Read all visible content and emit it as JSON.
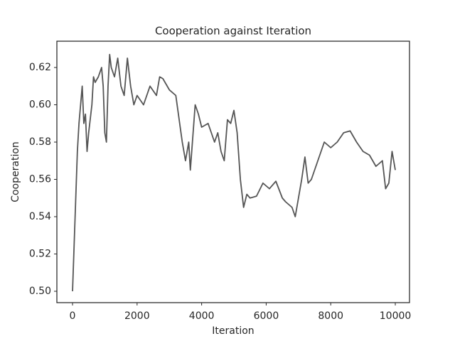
{
  "chart_data": {
    "type": "line",
    "title": "Cooperation against Iteration",
    "x_label": "Iteration",
    "y_label": "Cooperation",
    "x": [
      0,
      100,
      150,
      200,
      250,
      300,
      350,
      400,
      450,
      500,
      600,
      650,
      700,
      800,
      900,
      950,
      1000,
      1050,
      1100,
      1150,
      1200,
      1300,
      1400,
      1500,
      1600,
      1700,
      1800,
      1900,
      2000,
      2200,
      2400,
      2600,
      2700,
      2800,
      3000,
      3200,
      3400,
      3500,
      3600,
      3650,
      3800,
      3900,
      4000,
      4200,
      4400,
      4500,
      4600,
      4700,
      4800,
      4900,
      5000,
      5100,
      5200,
      5300,
      5400,
      5500,
      5700,
      5900,
      6100,
      6300,
      6500,
      6600,
      6800,
      6900,
      7000,
      7100,
      7200,
      7300,
      7400,
      7600,
      7800,
      8000,
      8200,
      8400,
      8600,
      8800,
      9000,
      9200,
      9400,
      9600,
      9700,
      9800,
      9900,
      10000
    ],
    "series": [
      {
        "name": "Cooperation",
        "color": "#555555",
        "values": [
          0.5,
          0.55,
          0.575,
          0.59,
          0.6,
          0.61,
          0.59,
          0.595,
          0.575,
          0.585,
          0.6,
          0.615,
          0.612,
          0.615,
          0.62,
          0.61,
          0.585,
          0.58,
          0.61,
          0.627,
          0.62,
          0.615,
          0.625,
          0.61,
          0.605,
          0.625,
          0.61,
          0.6,
          0.605,
          0.6,
          0.61,
          0.605,
          0.615,
          0.614,
          0.608,
          0.605,
          0.58,
          0.57,
          0.58,
          0.565,
          0.6,
          0.595,
          0.588,
          0.59,
          0.58,
          0.585,
          0.575,
          0.57,
          0.592,
          0.59,
          0.597,
          0.585,
          0.56,
          0.545,
          0.552,
          0.55,
          0.551,
          0.558,
          0.555,
          0.559,
          0.55,
          0.548,
          0.545,
          0.54,
          0.55,
          0.56,
          0.572,
          0.558,
          0.56,
          0.57,
          0.58,
          0.577,
          0.58,
          0.585,
          0.586,
          0.58,
          0.575,
          0.573,
          0.567,
          0.57,
          0.555,
          0.558,
          0.575,
          0.565
        ]
      }
    ],
    "xlim": [
      -485,
      10440
    ],
    "ylim": [
      0.4939,
      0.6341
    ],
    "xticks": [
      0,
      2000,
      4000,
      6000,
      8000,
      10000
    ],
    "yticks": [
      {
        "value": 0.5,
        "label": "0.50"
      },
      {
        "value": 0.52,
        "label": "0.52"
      },
      {
        "value": 0.54,
        "label": "0.54"
      },
      {
        "value": 0.56,
        "label": "0.56"
      },
      {
        "value": 0.58,
        "label": "0.58"
      },
      {
        "value": 0.6,
        "label": "0.60"
      },
      {
        "value": 0.62,
        "label": "0.62"
      }
    ],
    "grid": false
  }
}
